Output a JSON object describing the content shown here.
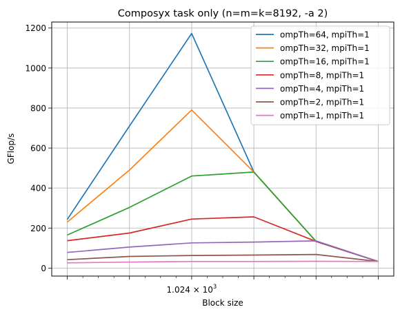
{
  "chart_data": {
    "type": "line",
    "title": "Composyx task only (n=m=k=8192, -a 2)",
    "xlabel": "Block size",
    "ylabel": "GFlop/s",
    "x_scale": "log2",
    "x": [
      256,
      512,
      1024,
      2048,
      4096,
      8192
    ],
    "x_ticklabels": [
      {
        "x": 1024,
        "base": "1.024 × 10",
        "exp": "3"
      }
    ],
    "ylim": [
      -40,
      1230
    ],
    "yticks": [
      0,
      200,
      400,
      600,
      800,
      1000,
      1200
    ],
    "grid": true,
    "legend_position": "top-right",
    "series": [
      {
        "name": "ompTh=64, mpiTh=1",
        "color": "#1f77b4",
        "values": [
          243,
          710,
          1173,
          480,
          133,
          33
        ]
      },
      {
        "name": "ompTh=32, mpiTh=1",
        "color": "#ff7f0e",
        "values": [
          230,
          490,
          790,
          480,
          133,
          33
        ]
      },
      {
        "name": "ompTh=16, mpiTh=1",
        "color": "#2ca02c",
        "values": [
          165,
          303,
          460,
          480,
          133,
          33
        ]
      },
      {
        "name": "ompTh=8, mpiTh=1",
        "color": "#d62728",
        "values": [
          137,
          175,
          245,
          256,
          133,
          33
        ]
      },
      {
        "name": "ompTh=4, mpiTh=1",
        "color": "#9467bd",
        "values": [
          78,
          105,
          126,
          130,
          136,
          33
        ]
      },
      {
        "name": "ompTh=2, mpiTh=1",
        "color": "#8c564b",
        "values": [
          42,
          58,
          63,
          65,
          68,
          33
        ]
      },
      {
        "name": "ompTh=1, mpiTh=1",
        "color": "#e377c2",
        "values": [
          26,
          30,
          33,
          33,
          34,
          33
        ]
      }
    ]
  }
}
